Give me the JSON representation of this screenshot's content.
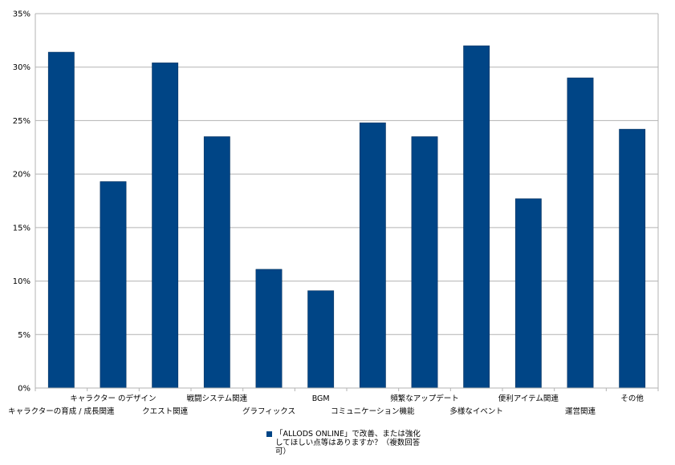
{
  "chart_data": {
    "type": "bar",
    "categories": [
      "キャラクターの育成 / 成長関連",
      "キャラクター のデザイン",
      "クエスト関連",
      "戦闘システム関連",
      "グラフィックス",
      "BGM",
      "コミュニケーション機能",
      "頻繁なアップデート",
      "多様なイベント",
      "便利アイテム関連",
      "運営関連",
      "その他"
    ],
    "series": [
      {
        "name": "「ALLODS ONLINE」で改善、または強化してほしい点等はありますか？（複数回答可）",
        "values": [
          31.4,
          19.3,
          30.4,
          23.5,
          11.1,
          9.1,
          24.8,
          23.5,
          32.0,
          17.7,
          29.0,
          24.2
        ]
      }
    ],
    "yticks": [
      "0%",
      "5%",
      "10%",
      "15%",
      "20%",
      "25%",
      "30%",
      "35%"
    ],
    "ylim": [
      0,
      35
    ],
    "grid": true,
    "legend_position": "bottom",
    "colors": {
      "bar": "#004586",
      "grid": "#b3b3b3",
      "axis": "#b3b3b3"
    }
  }
}
